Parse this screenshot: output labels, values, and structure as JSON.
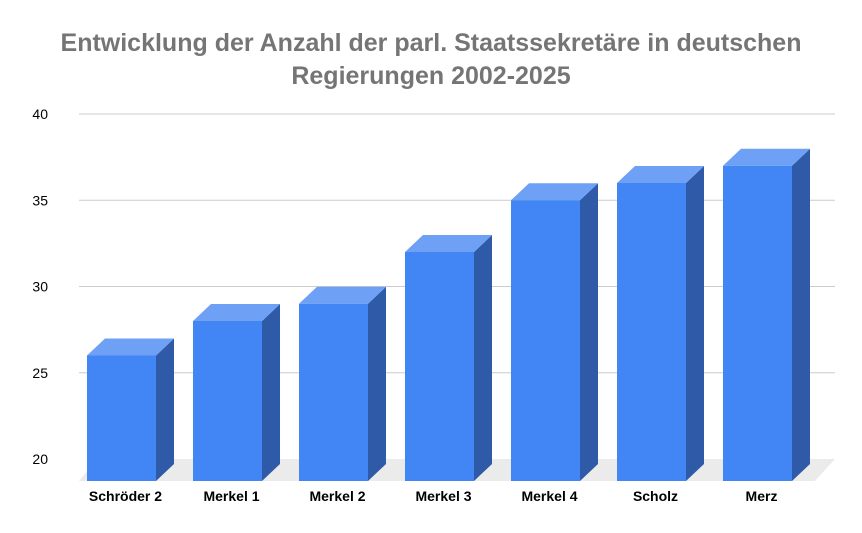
{
  "chart_data": {
    "type": "bar",
    "title_lines": [
      "Entwicklung der Anzahl der parl. Staatssekretäre in deutschen",
      "Regierungen 2002-2025"
    ],
    "categories": [
      "Schröder 2",
      "Merkel 1",
      "Merkel 2",
      "Merkel 3",
      "Merkel 4",
      "Scholz",
      "Merz"
    ],
    "values": [
      26,
      28,
      29,
      32,
      35,
      36,
      37
    ],
    "ylim": [
      20,
      40
    ],
    "yticks": [
      20,
      25,
      30,
      35,
      40
    ],
    "grid": true,
    "legend": "none",
    "style_3d": true,
    "colors": {
      "bar_front": "#4285f4",
      "bar_top": "#6ea1f6",
      "bar_side": "#2f5aa8",
      "floor": "#ebebeb",
      "grid": "#cccccc"
    }
  }
}
